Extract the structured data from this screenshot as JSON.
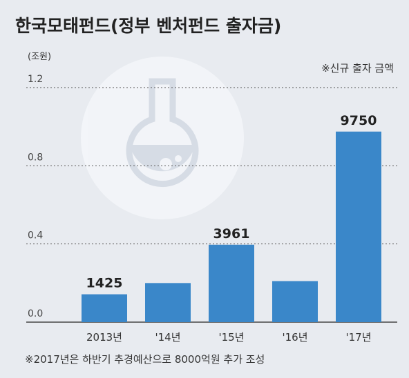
{
  "chart_data": {
    "type": "bar",
    "title": "한국모태펀드(정부 벤처펀드 출자금)",
    "unit_label": "(조원)",
    "note": "※신규 출자 금액",
    "footnote": "※2017년은 하반기 추경예산으로 8000억원 추가 조성",
    "categories": [
      "2013년",
      "'14년",
      "'15년",
      "'16년",
      "'17년"
    ],
    "values": [
      0.1425,
      0.2,
      0.3961,
      0.21,
      0.975
    ],
    "value_labels": [
      "1425",
      null,
      "3961",
      null,
      "9750"
    ],
    "color": "#3a87c9",
    "ylim": [
      0,
      1.2
    ],
    "yticks": [
      {
        "value": 0,
        "label": "0.0"
      },
      0.4,
      0.8,
      1.2
    ],
    "grid": true
  }
}
